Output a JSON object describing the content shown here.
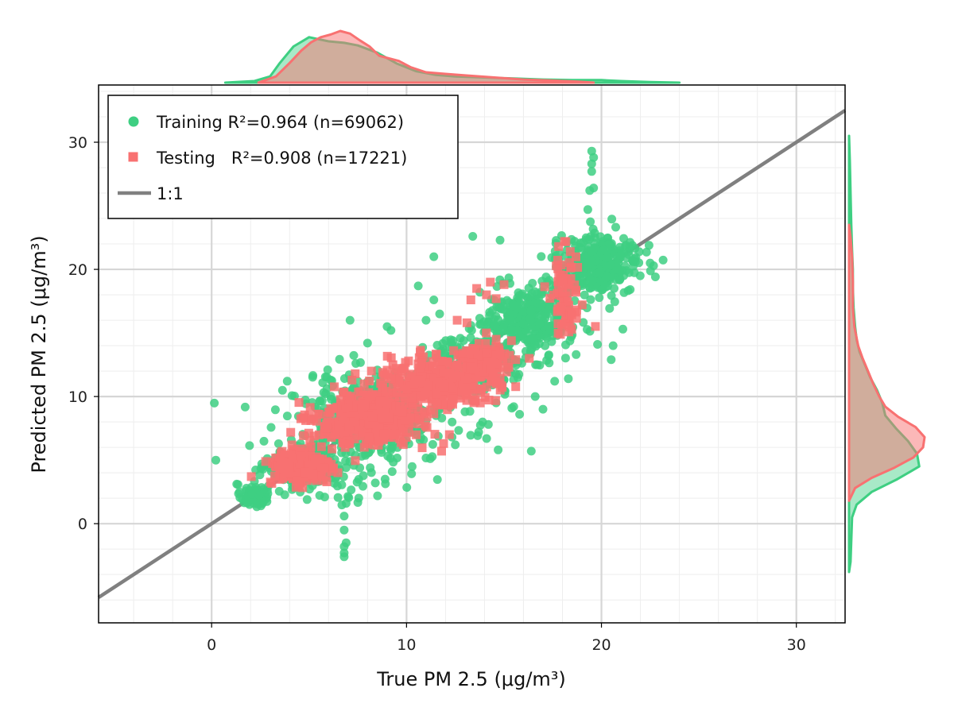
{
  "chart_data": {
    "type": "scatter",
    "xlabel": "True PM 2.5 (μg/m³)",
    "ylabel": "Predicted PM 2.5 (μg/m³)",
    "xlim": [
      -5.8,
      32.5
    ],
    "ylim": [
      -7.8,
      34.5
    ],
    "xticks": [
      0,
      10,
      20,
      30
    ],
    "yticks": [
      0,
      10,
      20,
      30
    ],
    "grid": true,
    "legend_position": "top-left",
    "reference_line": {
      "label": "1:1",
      "slope": 1,
      "intercept": 0,
      "color": "#808080"
    },
    "series": [
      {
        "name": "Training R²=0.964 (n=69062)",
        "marker": "circle",
        "color": "#3ecf82",
        "clusters": [
          {
            "center": [
              2.2,
              2.2
            ],
            "spread": [
              0.35,
              0.45
            ],
            "count": 90
          },
          {
            "center": [
              4.8,
              4.6
            ],
            "spread": [
              0.9,
              0.9
            ],
            "count": 220
          },
          {
            "center": [
              8.5,
              9.0
            ],
            "spread": [
              1.8,
              1.4
            ],
            "count": 380
          },
          {
            "center": [
              13.5,
              12.5
            ],
            "spread": [
              1.3,
              1.2
            ],
            "count": 200
          },
          {
            "center": [
              16.2,
              16.0
            ],
            "spread": [
              1.1,
              1.3
            ],
            "count": 320
          },
          {
            "center": [
              19.8,
              20.3
            ],
            "spread": [
              1.1,
              1.1
            ],
            "count": 360
          },
          {
            "center": [
              7.2,
              6.0
            ],
            "spread": [
              2.6,
              2.2
            ],
            "count": 120
          }
        ],
        "points": [
          [
            6.8,
            -2.6
          ],
          [
            6.8,
            -2.3
          ],
          [
            6.8,
            -1.8
          ],
          [
            6.9,
            -1.5
          ],
          [
            6.8,
            -0.5
          ],
          [
            6.8,
            0.6
          ],
          [
            6.9,
            1.6
          ],
          [
            19.5,
            29.3
          ],
          [
            19.6,
            28.8
          ],
          [
            19.5,
            28.3
          ],
          [
            19.5,
            27.7
          ],
          [
            19.6,
            26.4
          ],
          [
            19.4,
            26.2
          ],
          [
            19.3,
            24.7
          ],
          [
            13.4,
            22.6
          ],
          [
            14.8,
            22.3
          ],
          [
            11.4,
            21.0
          ],
          [
            10.6,
            18.7
          ],
          [
            11.4,
            17.6
          ],
          [
            11.7,
            16.5
          ],
          [
            7.1,
            16.0
          ],
          [
            9.0,
            15.5
          ],
          [
            9.2,
            15.2
          ],
          [
            10.8,
            13.0
          ],
          [
            15.0,
            11.3
          ],
          [
            14.2,
            7.8
          ],
          [
            15.8,
            8.6
          ],
          [
            16.4,
            5.7
          ],
          [
            14.7,
            5.8
          ],
          [
            13.7,
            7.2
          ],
          [
            13.0,
            8.8
          ],
          [
            13.9,
            8.0
          ],
          [
            12.5,
            6.2
          ],
          [
            17.0,
            9.0
          ],
          [
            18.7,
            13.3
          ],
          [
            20.6,
            14.0
          ],
          [
            20.5,
            12.9
          ],
          [
            19.8,
            14.1
          ],
          [
            17.2,
            14.6
          ],
          [
            16.7,
            12.5
          ],
          [
            17.6,
            11.2
          ],
          [
            18.3,
            11.4
          ],
          [
            21.1,
            15.3
          ],
          [
            22.5,
            20.5
          ],
          [
            4.9,
            1.9
          ],
          [
            5.8,
            2.1
          ],
          [
            8.4,
            3.2
          ],
          [
            8.9,
            3.5
          ],
          [
            9.2,
            5.8
          ],
          [
            6.1,
            11.3
          ],
          [
            7.4,
            12.6
          ],
          [
            8.0,
            14.2
          ],
          [
            11.0,
            16.0
          ],
          [
            16.6,
            10.0
          ],
          [
            14.6,
            9.5
          ],
          [
            15.5,
            9.2
          ]
        ]
      },
      {
        "name": "Testing   R²=0.908 (n=17221)",
        "marker": "square",
        "color": "#f87171",
        "clusters": [
          {
            "center": [
              4.6,
              4.4
            ],
            "spread": [
              0.8,
              0.7
            ],
            "count": 260
          },
          {
            "center": [
              8.0,
              8.2
            ],
            "spread": [
              1.3,
              1.0
            ],
            "count": 420
          },
          {
            "center": [
              11.5,
              11.2
            ],
            "spread": [
              1.3,
              1.0
            ],
            "count": 340
          },
          {
            "center": [
              14.0,
              12.8
            ],
            "spread": [
              0.6,
              0.8
            ],
            "count": 110
          },
          {
            "center": [
              18.2,
              17.8
            ],
            "spread": [
              0.4,
              1.7
            ],
            "count": 70
          }
        ],
        "points": [
          [
            13.3,
            17.6
          ],
          [
            13.6,
            18.5
          ],
          [
            14.1,
            18.0
          ],
          [
            14.6,
            17.7
          ],
          [
            15.0,
            18.8
          ],
          [
            14.3,
            19.0
          ],
          [
            11.9,
            6.3
          ],
          [
            11.8,
            5.7
          ],
          [
            12.2,
            7.0
          ],
          [
            14.6,
            14.5
          ],
          [
            15.6,
            12.9
          ],
          [
            16.3,
            13.0
          ],
          [
            14.6,
            11.0
          ],
          [
            13.7,
            10.6
          ],
          [
            12.4,
            9.8
          ],
          [
            17.8,
            21.8
          ],
          [
            18.1,
            22.2
          ],
          [
            18.4,
            21.4
          ],
          [
            13.1,
            15.8
          ],
          [
            12.6,
            16.0
          ],
          [
            9.3,
            12.5
          ],
          [
            10.7,
            13.5
          ],
          [
            8.2,
            12.0
          ]
        ]
      }
    ],
    "marginal_x": {
      "training": [
        [
          0.7,
          0.0
        ],
        [
          2.2,
          0.03
        ],
        [
          3.0,
          0.12
        ],
        [
          3.5,
          0.38
        ],
        [
          4.2,
          0.7
        ],
        [
          5.0,
          0.88
        ],
        [
          6.0,
          0.8
        ],
        [
          6.8,
          0.77
        ],
        [
          7.5,
          0.72
        ],
        [
          8.5,
          0.58
        ],
        [
          9.5,
          0.37
        ],
        [
          10.5,
          0.22
        ],
        [
          11.5,
          0.15
        ],
        [
          12.5,
          0.12
        ],
        [
          14.0,
          0.1
        ],
        [
          15.5,
          0.08
        ],
        [
          17.0,
          0.06
        ],
        [
          18.5,
          0.05
        ],
        [
          20.0,
          0.05
        ],
        [
          21.0,
          0.03
        ],
        [
          22.5,
          0.01
        ],
        [
          24.0,
          0.0
        ]
      ],
      "testing": [
        [
          2.4,
          0.0
        ],
        [
          3.3,
          0.12
        ],
        [
          4.0,
          0.38
        ],
        [
          4.6,
          0.62
        ],
        [
          5.1,
          0.78
        ],
        [
          5.6,
          0.88
        ],
        [
          6.1,
          0.93
        ],
        [
          6.6,
          1.0
        ],
        [
          7.1,
          0.95
        ],
        [
          7.6,
          0.82
        ],
        [
          8.1,
          0.7
        ],
        [
          8.6,
          0.52
        ],
        [
          9.1,
          0.47
        ],
        [
          9.6,
          0.42
        ],
        [
          10.2,
          0.3
        ],
        [
          11.0,
          0.2
        ],
        [
          12.0,
          0.17
        ],
        [
          13.0,
          0.14
        ],
        [
          14.5,
          0.1
        ],
        [
          16.0,
          0.06
        ],
        [
          17.5,
          0.04
        ],
        [
          18.8,
          0.02
        ],
        [
          19.6,
          0.0
        ]
      ]
    },
    "marginal_y": {
      "training": [
        [
          -3.8,
          0.0
        ],
        [
          -3.0,
          0.02
        ],
        [
          0.5,
          0.04
        ],
        [
          1.5,
          0.1
        ],
        [
          2.5,
          0.3
        ],
        [
          3.5,
          0.64
        ],
        [
          4.5,
          0.93
        ],
        [
          5.5,
          0.9
        ],
        [
          6.5,
          0.78
        ],
        [
          7.5,
          0.62
        ],
        [
          8.5,
          0.48
        ],
        [
          9.5,
          0.44
        ],
        [
          10.5,
          0.37
        ],
        [
          11.5,
          0.28
        ],
        [
          12.5,
          0.21
        ],
        [
          13.5,
          0.14
        ],
        [
          14.5,
          0.1
        ],
        [
          15.5,
          0.08
        ],
        [
          17.0,
          0.06
        ],
        [
          18.5,
          0.05
        ],
        [
          20.0,
          0.05
        ],
        [
          21.5,
          0.04
        ],
        [
          23.5,
          0.03
        ],
        [
          26.0,
          0.02
        ],
        [
          28.5,
          0.01
        ],
        [
          30.5,
          0.0
        ]
      ],
      "testing": [
        [
          1.8,
          0.0
        ],
        [
          2.8,
          0.08
        ],
        [
          3.6,
          0.3
        ],
        [
          4.4,
          0.6
        ],
        [
          5.2,
          0.85
        ],
        [
          6.0,
          0.98
        ],
        [
          6.8,
          1.0
        ],
        [
          7.6,
          0.88
        ],
        [
          8.4,
          0.65
        ],
        [
          9.2,
          0.48
        ],
        [
          10.0,
          0.4
        ],
        [
          11.0,
          0.32
        ],
        [
          12.0,
          0.25
        ],
        [
          13.0,
          0.18
        ],
        [
          14.0,
          0.12
        ],
        [
          15.5,
          0.07
        ],
        [
          17.0,
          0.05
        ],
        [
          19.0,
          0.05
        ],
        [
          21.0,
          0.04
        ],
        [
          22.5,
          0.02
        ],
        [
          23.5,
          0.0
        ]
      ]
    }
  }
}
